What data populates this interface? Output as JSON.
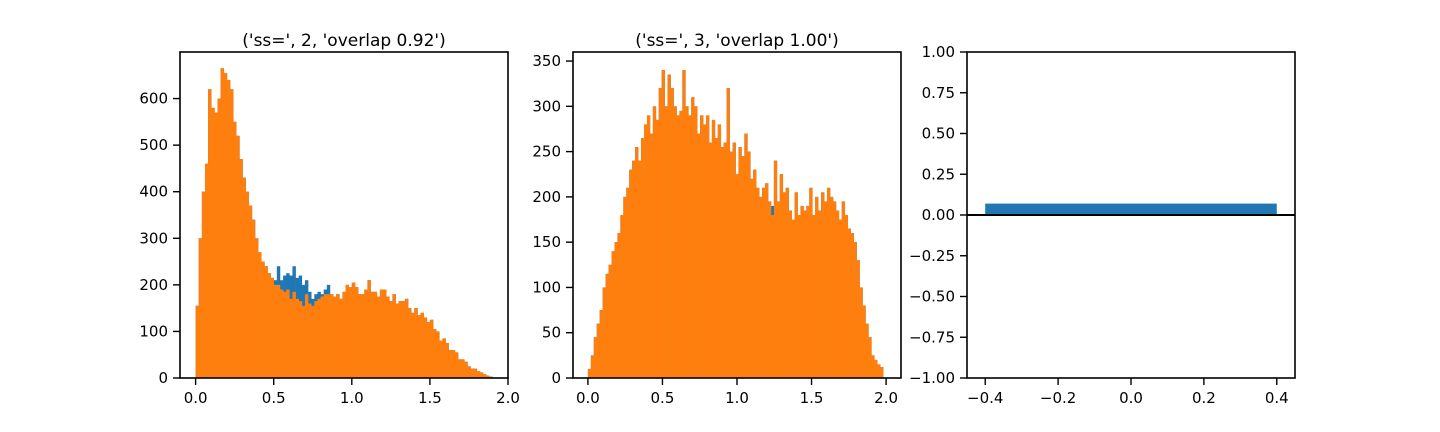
{
  "figure": {
    "title": "",
    "colors": {
      "series_a": "#1f77b4",
      "series_b": "#ff7f0e",
      "axes": "#000000",
      "background": "#ffffff"
    }
  },
  "chart_data": [
    {
      "type": "bar",
      "title": "('ss=', 2, 'overlap 0.92')",
      "xlabel": "",
      "ylabel": "",
      "xlim": [
        -0.1,
        2.0
      ],
      "ylim": [
        0,
        700
      ],
      "grid": false,
      "xticks": [
        {
          "value": 0.0,
          "label": "0.0"
        },
        {
          "value": 0.5,
          "label": "0.5"
        },
        {
          "value": 1.0,
          "label": "1.0"
        },
        {
          "value": 1.5,
          "label": "1.5"
        },
        {
          "value": 2.0,
          "label": "2.0"
        }
      ],
      "yticks": [
        {
          "value": 0,
          "label": "0"
        },
        {
          "value": 100,
          "label": "100"
        },
        {
          "value": 200,
          "label": "200"
        },
        {
          "value": 300,
          "label": "300"
        },
        {
          "value": 400,
          "label": "400"
        },
        {
          "value": 500,
          "label": "500"
        },
        {
          "value": 600,
          "label": "600"
        }
      ],
      "bin_range": [
        0.0,
        1.9
      ],
      "series": [
        {
          "color": "#1f77b4",
          "values": [
            155,
            300,
            400,
            460,
            620,
            580,
            570,
            600,
            665,
            655,
            640,
            620,
            550,
            520,
            470,
            430,
            400,
            370,
            340,
            300,
            270,
            250,
            240,
            225,
            215,
            210,
            240,
            210,
            220,
            225,
            220,
            240,
            215,
            220,
            200,
            210,
            185,
            170,
            180,
            185,
            180,
            190,
            200,
            180,
            175,
            180,
            170,
            185,
            200,
            195,
            205,
            195,
            180,
            180,
            190,
            210,
            185,
            185,
            175,
            190,
            190,
            175,
            165,
            180,
            160,
            165,
            165,
            170,
            150,
            140,
            150,
            135,
            140,
            130,
            120,
            125,
            105,
            100,
            80,
            85,
            75,
            60,
            60,
            55,
            40,
            40,
            35,
            25,
            20,
            20,
            15,
            12,
            8,
            5,
            3
          ]
        },
        {
          "color": "#ff7f0e",
          "values": [
            155,
            300,
            400,
            460,
            620,
            580,
            570,
            600,
            665,
            655,
            640,
            620,
            550,
            520,
            470,
            430,
            400,
            370,
            340,
            300,
            270,
            250,
            240,
            225,
            215,
            200,
            200,
            190,
            185,
            190,
            170,
            185,
            170,
            165,
            155,
            180,
            160,
            155,
            165,
            170,
            175,
            180,
            180,
            180,
            175,
            180,
            170,
            185,
            200,
            195,
            205,
            195,
            180,
            180,
            190,
            210,
            185,
            185,
            175,
            190,
            190,
            175,
            165,
            180,
            160,
            165,
            165,
            170,
            150,
            140,
            150,
            135,
            140,
            130,
            120,
            125,
            105,
            100,
            80,
            85,
            75,
            60,
            60,
            55,
            40,
            40,
            35,
            25,
            20,
            20,
            15,
            12,
            8,
            5,
            3
          ]
        }
      ]
    },
    {
      "type": "bar",
      "title": "('ss=', 3, 'overlap 1.00')",
      "xlabel": "",
      "ylabel": "",
      "xlim": [
        -0.1,
        2.1
      ],
      "ylim": [
        0,
        360
      ],
      "grid": false,
      "xticks": [
        {
          "value": 0.0,
          "label": "0.0"
        },
        {
          "value": 0.5,
          "label": "0.5"
        },
        {
          "value": 1.0,
          "label": "1.0"
        },
        {
          "value": 1.5,
          "label": "1.5"
        },
        {
          "value": 2.0,
          "label": "2.0"
        }
      ],
      "yticks": [
        {
          "value": 0,
          "label": "0"
        },
        {
          "value": 50,
          "label": "50"
        },
        {
          "value": 100,
          "label": "100"
        },
        {
          "value": 150,
          "label": "150"
        },
        {
          "value": 200,
          "label": "200"
        },
        {
          "value": 250,
          "label": "250"
        },
        {
          "value": 300,
          "label": "300"
        },
        {
          "value": 350,
          "label": "350"
        }
      ],
      "bin_range": [
        0.0,
        1.98
      ],
      "series": [
        {
          "color": "#1f77b4",
          "values": [
            10,
            25,
            45,
            60,
            75,
            100,
            115,
            125,
            140,
            150,
            160,
            180,
            200,
            210,
            230,
            240,
            255,
            240,
            265,
            280,
            290,
            270,
            300,
            285,
            320,
            340,
            300,
            335,
            320,
            300,
            290,
            295,
            340,
            300,
            290,
            310,
            300,
            270,
            290,
            280,
            290,
            260,
            285,
            265,
            280,
            255,
            260,
            320,
            250,
            260,
            225,
            255,
            245,
            270,
            250,
            220,
            230,
            210,
            200,
            210,
            215,
            195,
            190,
            240,
            195,
            225,
            205,
            210,
            185,
            175,
            205,
            180,
            190,
            185,
            190,
            210,
            180,
            200,
            185,
            205,
            195,
            210,
            200,
            195,
            185,
            175,
            195,
            180,
            165,
            160,
            150,
            130,
            100,
            80,
            60,
            45,
            25,
            20,
            15,
            12
          ]
        },
        {
          "color": "#ff7f0e",
          "values": [
            10,
            25,
            45,
            60,
            75,
            100,
            115,
            125,
            140,
            150,
            160,
            180,
            200,
            210,
            230,
            240,
            255,
            240,
            265,
            280,
            290,
            270,
            300,
            285,
            320,
            340,
            300,
            335,
            320,
            300,
            290,
            295,
            340,
            300,
            290,
            310,
            300,
            270,
            290,
            280,
            290,
            260,
            285,
            265,
            280,
            255,
            260,
            320,
            250,
            260,
            225,
            255,
            245,
            270,
            250,
            220,
            230,
            210,
            200,
            210,
            215,
            195,
            180,
            240,
            195,
            225,
            205,
            210,
            185,
            175,
            205,
            180,
            190,
            185,
            190,
            210,
            180,
            200,
            185,
            205,
            195,
            210,
            200,
            195,
            185,
            175,
            195,
            180,
            165,
            160,
            150,
            130,
            100,
            80,
            60,
            45,
            25,
            20,
            15,
            12
          ]
        }
      ]
    },
    {
      "type": "bar",
      "title": "",
      "xlabel": "",
      "ylabel": "",
      "xlim": [
        -0.45,
        0.45
      ],
      "ylim": [
        -1.0,
        1.0
      ],
      "grid": false,
      "hline": 0.0,
      "xticks": [
        {
          "value": -0.4,
          "label": "−0.4"
        },
        {
          "value": -0.2,
          "label": "−0.2"
        },
        {
          "value": 0.0,
          "label": "0.0"
        },
        {
          "value": 0.2,
          "label": "0.2"
        },
        {
          "value": 0.4,
          "label": "0.4"
        }
      ],
      "yticks": [
        {
          "value": -1.0,
          "label": "−1.00"
        },
        {
          "value": -0.75,
          "label": "−0.75"
        },
        {
          "value": -0.5,
          "label": "−0.50"
        },
        {
          "value": -0.25,
          "label": "−0.25"
        },
        {
          "value": 0.0,
          "label": "0.00"
        },
        {
          "value": 0.25,
          "label": "0.25"
        },
        {
          "value": 0.5,
          "label": "0.50"
        },
        {
          "value": 0.75,
          "label": "0.75"
        },
        {
          "value": 1.0,
          "label": "1.00"
        }
      ],
      "bars": [
        {
          "x_start": -0.4,
          "x_end": 0.4,
          "value": 0.07,
          "color": "#1f77b4"
        }
      ]
    }
  ]
}
